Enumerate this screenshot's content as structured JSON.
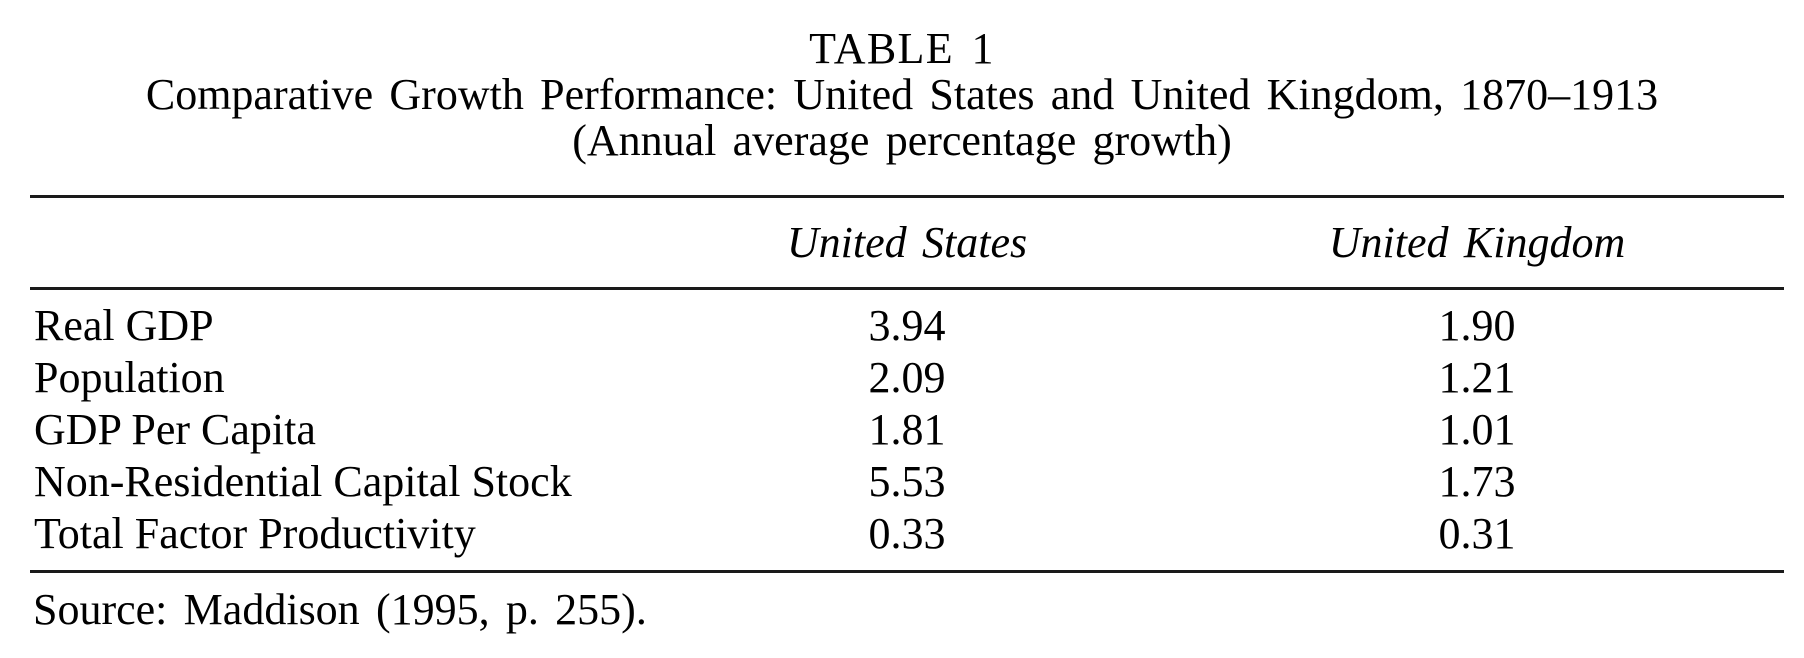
{
  "title": {
    "line1": "TABLE 1",
    "line2": "Comparative Growth Performance: United States and United Kingdom, 1870–1913",
    "line3": "(Annual average percentage growth)"
  },
  "table": {
    "columns": [
      "",
      "United States",
      "United Kingdom"
    ],
    "rows": [
      {
        "label": "Real GDP",
        "us": "3.94",
        "uk": "1.90"
      },
      {
        "label": "Population",
        "us": "2.09",
        "uk": "1.21"
      },
      {
        "label": "GDP Per Capita",
        "us": "1.81",
        "uk": "1.01"
      },
      {
        "label": "Non-Residential Capital Stock",
        "us": "5.53",
        "uk": "1.73"
      },
      {
        "label": "Total Factor Productivity",
        "us": "0.33",
        "uk": "0.31"
      }
    ]
  },
  "source": "Source: Maddison (1995, p. 255).",
  "colors": {
    "text": "#000000",
    "background": "#ffffff",
    "rule": "#1a1a1a"
  }
}
